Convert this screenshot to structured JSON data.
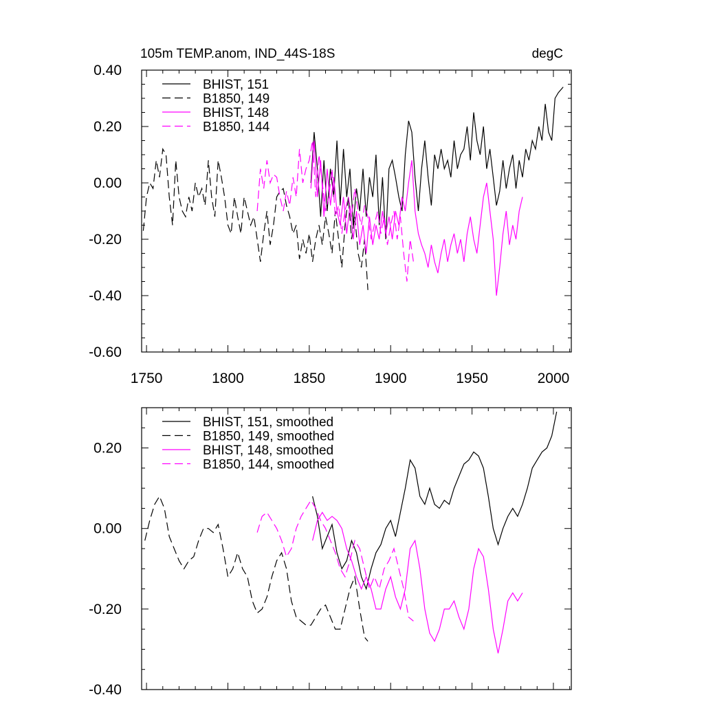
{
  "colors": {
    "bhist_black": "#000000",
    "b1850_black": "#000000",
    "bhist_magenta": "#ff00ff",
    "b1850_magenta": "#ff00ff"
  },
  "chart_data": [
    {
      "type": "line",
      "title": "105m TEMP.anom, IND_44S-18S",
      "units": "degC",
      "xlim": [
        1747,
        2011
      ],
      "ylim": [
        -0.6,
        0.4
      ],
      "xticks": [
        "1750",
        "1800",
        "1850",
        "1900",
        "1950",
        "2000"
      ],
      "yticks": [
        "0.40",
        "0.20",
        "0.00",
        "-0.20",
        "-0.40",
        "-0.60"
      ],
      "legend": [
        "BHIST, 151",
        "B1850, 149",
        "BHIST, 148",
        "B1850, 144"
      ],
      "series": [
        {
          "name": "BHIST, 151",
          "color": "#000000",
          "dash": "solid",
          "x": [
            1851,
            1853,
            1855,
            1857,
            1859,
            1861,
            1863,
            1865,
            1867,
            1869,
            1871,
            1873,
            1875,
            1877,
            1879,
            1881,
            1883,
            1885,
            1887,
            1889,
            1891,
            1893,
            1895,
            1897,
            1899,
            1901,
            1903,
            1905,
            1907,
            1909,
            1911,
            1913,
            1915,
            1917,
            1919,
            1921,
            1923,
            1925,
            1927,
            1929,
            1931,
            1933,
            1935,
            1937,
            1939,
            1941,
            1943,
            1945,
            1947,
            1949,
            1951,
            1953,
            1955,
            1957,
            1959,
            1961,
            1963,
            1965,
            1967,
            1969,
            1971,
            1973,
            1975,
            1977,
            1979,
            1981,
            1983,
            1985,
            1987,
            1989,
            1991,
            1993,
            1995,
            1997,
            1999,
            2001,
            2003,
            2006
          ],
          "y": [
            0.0,
            0.18,
            0.05,
            -0.12,
            0.08,
            -0.1,
            0.05,
            -0.05,
            0.15,
            -0.08,
            0.12,
            -0.05,
            0.05,
            -0.15,
            -0.02,
            -0.1,
            0.05,
            -0.12,
            0.02,
            -0.05,
            0.1,
            -0.15,
            0.02,
            -0.2,
            0.05,
            0.08,
            0.02,
            -0.05,
            -0.1,
            0.1,
            0.22,
            0.18,
            0.02,
            -0.1,
            0.05,
            0.15,
            0.02,
            -0.08,
            0.1,
            0.05,
            0.12,
            0.05,
            0.08,
            0.02,
            0.15,
            0.05,
            0.1,
            0.12,
            0.2,
            0.08,
            0.25,
            0.15,
            0.1,
            0.2,
            0.05,
            0.12,
            0.02,
            -0.08,
            -0.03,
            0.08,
            -0.02,
            0.05,
            0.1,
            -0.02,
            0.08,
            0.02,
            0.12,
            0.08,
            0.15,
            0.12,
            0.2,
            0.15,
            0.28,
            0.18,
            0.15,
            0.3,
            0.32,
            0.34
          ]
        },
        {
          "name": "B1850, 149",
          "color": "#000000",
          "dash": "12,6",
          "x": [
            1748,
            1750,
            1752,
            1754,
            1756,
            1758,
            1760,
            1762,
            1764,
            1766,
            1768,
            1770,
            1772,
            1774,
            1776,
            1778,
            1780,
            1782,
            1784,
            1786,
            1788,
            1790,
            1792,
            1794,
            1796,
            1798,
            1800,
            1802,
            1804,
            1806,
            1808,
            1810,
            1812,
            1814,
            1816,
            1818,
            1820,
            1822,
            1824,
            1826,
            1828,
            1830,
            1832,
            1834,
            1836,
            1838,
            1840,
            1842,
            1844,
            1846,
            1848,
            1850,
            1852,
            1854,
            1856,
            1858,
            1860,
            1862,
            1864,
            1866,
            1868,
            1870,
            1872,
            1874,
            1876,
            1878,
            1880,
            1882,
            1884,
            1886
          ],
          "y": [
            -0.17,
            -0.05,
            0.0,
            -0.02,
            0.08,
            0.02,
            0.12,
            0.1,
            -0.05,
            -0.15,
            0.08,
            -0.05,
            -0.1,
            -0.12,
            -0.05,
            -0.1,
            0.0,
            -0.05,
            -0.02,
            -0.08,
            0.08,
            -0.05,
            -0.12,
            0.08,
            0.02,
            -0.05,
            -0.15,
            -0.18,
            -0.05,
            -0.12,
            -0.18,
            -0.05,
            -0.1,
            -0.15,
            -0.12,
            -0.2,
            -0.28,
            -0.18,
            -0.1,
            -0.22,
            -0.15,
            -0.05,
            -0.03,
            -0.02,
            -0.08,
            -0.12,
            -0.18,
            -0.15,
            -0.27,
            -0.2,
            -0.25,
            -0.18,
            -0.28,
            -0.2,
            -0.15,
            -0.22,
            -0.12,
            -0.18,
            -0.25,
            -0.1,
            -0.2,
            -0.3,
            -0.15,
            -0.05,
            -0.2,
            -0.12,
            -0.25,
            -0.3,
            -0.2,
            -0.38
          ]
        },
        {
          "name": "BHIST, 148",
          "color": "#ff00ff",
          "dash": "solid",
          "x": [
            1851,
            1853,
            1855,
            1857,
            1859,
            1861,
            1863,
            1865,
            1867,
            1869,
            1871,
            1873,
            1875,
            1877,
            1879,
            1881,
            1883,
            1885,
            1887,
            1889,
            1891,
            1893,
            1895,
            1897,
            1899,
            1901,
            1903,
            1905,
            1907,
            1909,
            1911,
            1913,
            1915,
            1917,
            1919,
            1921,
            1923,
            1925,
            1927,
            1929,
            1931,
            1933,
            1935,
            1937,
            1939,
            1941,
            1943,
            1945,
            1947,
            1949,
            1951,
            1953,
            1955,
            1957,
            1959,
            1961,
            1963,
            1965,
            1967,
            1969,
            1971,
            1973,
            1975,
            1977,
            1979,
            1981
          ],
          "y": [
            -0.02,
            0.15,
            -0.05,
            0.08,
            -0.12,
            0.05,
            -0.08,
            0.02,
            -0.1,
            -0.15,
            -0.05,
            -0.18,
            -0.08,
            -0.2,
            -0.1,
            -0.22,
            -0.15,
            -0.25,
            -0.12,
            -0.22,
            -0.15,
            -0.2,
            -0.1,
            -0.18,
            -0.12,
            -0.2,
            -0.1,
            -0.15,
            -0.05,
            -0.1,
            0.0,
            0.08,
            -0.1,
            -0.18,
            -0.22,
            -0.25,
            -0.3,
            -0.22,
            -0.28,
            -0.32,
            -0.25,
            -0.2,
            -0.28,
            -0.22,
            -0.18,
            -0.25,
            -0.2,
            -0.28,
            -0.18,
            -0.12,
            -0.2,
            -0.25,
            -0.15,
            -0.05,
            0.0,
            -0.1,
            -0.2,
            -0.4,
            -0.3,
            -0.18,
            -0.1,
            -0.22,
            -0.15,
            -0.2,
            -0.1,
            -0.05
          ]
        },
        {
          "name": "B1850, 144",
          "color": "#ff00ff",
          "dash": "12,6",
          "x": [
            1818,
            1820,
            1822,
            1824,
            1826,
            1828,
            1830,
            1832,
            1834,
            1836,
            1838,
            1840,
            1842,
            1844,
            1846,
            1848,
            1850,
            1852,
            1854,
            1856,
            1858,
            1860,
            1862,
            1864,
            1866,
            1868,
            1870,
            1872,
            1874,
            1876,
            1878,
            1880,
            1882,
            1884,
            1886,
            1888,
            1890,
            1892,
            1894,
            1896,
            1898,
            1900,
            1902,
            1904,
            1906,
            1908,
            1910,
            1912,
            1914
          ],
          "y": [
            -0.1,
            0.05,
            -0.02,
            0.08,
            0.0,
            0.03,
            0.02,
            -0.05,
            -0.1,
            -0.03,
            -0.08,
            0.02,
            -0.05,
            0.12,
            0.0,
            0.05,
            0.08,
            0.15,
            -0.05,
            0.1,
            0.0,
            -0.1,
            -0.05,
            0.05,
            -0.12,
            -0.08,
            -0.18,
            -0.1,
            -0.05,
            -0.12,
            -0.02,
            -0.1,
            -0.15,
            -0.08,
            -0.12,
            -0.2,
            -0.15,
            -0.1,
            -0.18,
            -0.12,
            -0.22,
            -0.15,
            -0.1,
            -0.2,
            -0.12,
            -0.25,
            -0.35,
            -0.2,
            -0.28
          ]
        }
      ]
    },
    {
      "type": "line",
      "title": "",
      "xlim": [
        1747,
        2011
      ],
      "ylim": [
        -0.4,
        0.3
      ],
      "yticks": [
        "0.20",
        "0.00",
        "-0.20",
        "-0.40"
      ],
      "legend": [
        "BHIST, 151, smoothed",
        "B1850, 149, smoothed",
        "BHIST, 148, smoothed",
        "B1850, 144, smoothed"
      ],
      "series": [
        {
          "name": "BHIST, 151, smoothed",
          "color": "#000000",
          "dash": "solid",
          "x": [
            1852,
            1855,
            1858,
            1861,
            1864,
            1867,
            1870,
            1873,
            1876,
            1879,
            1882,
            1885,
            1888,
            1891,
            1894,
            1897,
            1900,
            1903,
            1906,
            1909,
            1912,
            1915,
            1918,
            1921,
            1924,
            1927,
            1930,
            1933,
            1936,
            1939,
            1942,
            1945,
            1948,
            1951,
            1954,
            1957,
            1960,
            1963,
            1966,
            1969,
            1972,
            1975,
            1978,
            1981,
            1984,
            1987,
            1990,
            1993,
            1996,
            1999,
            2002
          ],
          "y": [
            0.08,
            0.03,
            -0.05,
            -0.02,
            0.01,
            -0.06,
            -0.1,
            -0.08,
            -0.03,
            -0.06,
            -0.12,
            -0.15,
            -0.1,
            -0.06,
            -0.04,
            0.0,
            0.02,
            -0.02,
            0.04,
            0.1,
            0.17,
            0.15,
            0.08,
            0.06,
            0.1,
            0.06,
            0.05,
            0.07,
            0.06,
            0.1,
            0.13,
            0.16,
            0.17,
            0.19,
            0.18,
            0.15,
            0.08,
            0.0,
            -0.04,
            0.0,
            0.03,
            0.05,
            0.03,
            0.06,
            0.1,
            0.15,
            0.17,
            0.19,
            0.2,
            0.23,
            0.29
          ]
        },
        {
          "name": "B1850, 149, smoothed",
          "color": "#000000",
          "dash": "12,6",
          "x": [
            1749,
            1752,
            1755,
            1758,
            1761,
            1764,
            1767,
            1770,
            1773,
            1776,
            1779,
            1782,
            1785,
            1788,
            1791,
            1794,
            1797,
            1800,
            1803,
            1806,
            1809,
            1812,
            1815,
            1818,
            1821,
            1824,
            1827,
            1830,
            1833,
            1836,
            1839,
            1842,
            1845,
            1848,
            1851,
            1854,
            1857,
            1860,
            1863,
            1866,
            1869,
            1872,
            1875,
            1878,
            1881,
            1884,
            1886
          ],
          "y": [
            -0.03,
            0.02,
            0.06,
            0.08,
            0.05,
            -0.02,
            -0.05,
            -0.08,
            -0.1,
            -0.08,
            -0.07,
            -0.03,
            0.0,
            0.0,
            -0.01,
            0.01,
            -0.05,
            -0.12,
            -0.1,
            -0.06,
            -0.1,
            -0.12,
            -0.18,
            -0.21,
            -0.2,
            -0.17,
            -0.12,
            -0.08,
            -0.06,
            -0.1,
            -0.18,
            -0.22,
            -0.23,
            -0.24,
            -0.24,
            -0.22,
            -0.2,
            -0.19,
            -0.22,
            -0.25,
            -0.25,
            -0.2,
            -0.15,
            -0.12,
            -0.2,
            -0.27,
            -0.28
          ]
        },
        {
          "name": "BHIST, 148, smoothed",
          "color": "#ff00ff",
          "dash": "solid",
          "x": [
            1852,
            1855,
            1858,
            1861,
            1864,
            1867,
            1870,
            1873,
            1876,
            1879,
            1882,
            1885,
            1888,
            1891,
            1894,
            1897,
            1900,
            1903,
            1906,
            1909,
            1912,
            1915,
            1918,
            1921,
            1924,
            1927,
            1930,
            1933,
            1936,
            1939,
            1942,
            1945,
            1948,
            1951,
            1954,
            1957,
            1960,
            1963,
            1966,
            1969,
            1972,
            1975,
            1978,
            1981
          ],
          "y": [
            -0.03,
            0.02,
            0.04,
            0.02,
            0.03,
            0.02,
            0.0,
            -0.05,
            -0.08,
            -0.12,
            -0.15,
            -0.12,
            -0.15,
            -0.2,
            -0.2,
            -0.15,
            -0.12,
            -0.17,
            -0.2,
            -0.15,
            -0.05,
            -0.03,
            -0.1,
            -0.2,
            -0.26,
            -0.28,
            -0.25,
            -0.2,
            -0.2,
            -0.18,
            -0.22,
            -0.25,
            -0.2,
            -0.1,
            -0.05,
            -0.07,
            -0.15,
            -0.25,
            -0.31,
            -0.25,
            -0.18,
            -0.16,
            -0.18,
            -0.16
          ]
        },
        {
          "name": "B1850, 144, smoothed",
          "color": "#ff00ff",
          "dash": "12,6",
          "x": [
            1818,
            1821,
            1824,
            1827,
            1830,
            1833,
            1836,
            1839,
            1842,
            1845,
            1848,
            1851,
            1854,
            1857,
            1860,
            1863,
            1866,
            1869,
            1872,
            1875,
            1878,
            1881,
            1884,
            1887,
            1890,
            1893,
            1896,
            1899,
            1902,
            1905,
            1908,
            1911,
            1914
          ],
          "y": [
            -0.01,
            0.03,
            0.04,
            0.02,
            0.0,
            -0.03,
            -0.07,
            -0.05,
            0.0,
            0.03,
            0.05,
            0.07,
            0.05,
            0.02,
            0.0,
            -0.03,
            -0.06,
            -0.1,
            -0.12,
            -0.08,
            -0.03,
            -0.05,
            -0.1,
            -0.15,
            -0.12,
            -0.15,
            -0.1,
            -0.08,
            -0.05,
            -0.1,
            -0.15,
            -0.22,
            -0.23
          ]
        }
      ]
    }
  ]
}
